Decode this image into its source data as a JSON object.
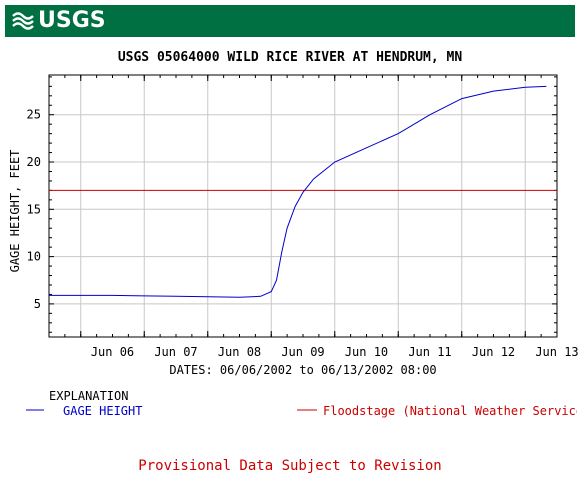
{
  "header": {
    "logo_text": "USGS",
    "color": "#006f41"
  },
  "chart_data": {
    "type": "line",
    "title": "USGS 05064000 WILD RICE RIVER AT HENDRUM, MN",
    "xlabel": "DATES: 06/06/2002 to 06/13/2002 08:00",
    "ylabel": "GAGE HEIGHT, FEET",
    "x_range": [
      "2002-06-05 12:00",
      "2002-06-13 12:00"
    ],
    "ylim": [
      1.5,
      29.2
    ],
    "x_ticks": [
      {
        "label": "Jun 06",
        "at": "2002-06-06"
      },
      {
        "label": "Jun 07",
        "at": "2002-06-07"
      },
      {
        "label": "Jun 08",
        "at": "2002-06-08"
      },
      {
        "label": "Jun 09",
        "at": "2002-06-09"
      },
      {
        "label": "Jun 10",
        "at": "2002-06-10"
      },
      {
        "label": "Jun 11",
        "at": "2002-06-11"
      },
      {
        "label": "Jun 12",
        "at": "2002-06-12"
      },
      {
        "label": "Jun 13",
        "at": "2002-06-13"
      }
    ],
    "y_ticks": [
      5,
      10,
      15,
      20,
      25
    ],
    "grid": true,
    "series": [
      {
        "name": "GAGE HEIGHT",
        "color": "#0000cc",
        "points": [
          [
            "2002-06-05 12:00",
            5.9
          ],
          [
            "2002-06-06 12:00",
            5.9
          ],
          [
            "2002-06-07 00:00",
            5.85
          ],
          [
            "2002-06-07 12:00",
            5.8
          ],
          [
            "2002-06-08 00:00",
            5.75
          ],
          [
            "2002-06-08 12:00",
            5.7
          ],
          [
            "2002-06-08 20:00",
            5.8
          ],
          [
            "2002-06-09 00:00",
            6.3
          ],
          [
            "2002-06-09 02:00",
            7.5
          ],
          [
            "2002-06-09 04:00",
            10.5
          ],
          [
            "2002-06-09 06:00",
            13.0
          ],
          [
            "2002-06-09 09:00",
            15.3
          ],
          [
            "2002-06-09 12:00",
            16.8
          ],
          [
            "2002-06-09 16:00",
            18.2
          ],
          [
            "2002-06-10 00:00",
            20.0
          ],
          [
            "2002-06-10 12:00",
            21.5
          ],
          [
            "2002-06-11 00:00",
            23.0
          ],
          [
            "2002-06-11 12:00",
            25.0
          ],
          [
            "2002-06-12 00:00",
            26.7
          ],
          [
            "2002-06-12 12:00",
            27.5
          ],
          [
            "2002-06-13 00:00",
            27.9
          ],
          [
            "2002-06-13 08:00",
            28.0
          ]
        ]
      }
    ],
    "reference_lines": [
      {
        "name": "Floodstage (National Weather Service)",
        "y": 17,
        "color": "#cc0000"
      }
    ]
  },
  "explanation": {
    "heading": "EXPLANATION",
    "items": [
      {
        "label": "GAGE HEIGHT",
        "color": "#0000cc"
      },
      {
        "label": "Floodstage (National Weather Service)",
        "color": "#cc0000"
      }
    ]
  },
  "footer": {
    "provisional": "Provisional Data Subject to Revision"
  }
}
